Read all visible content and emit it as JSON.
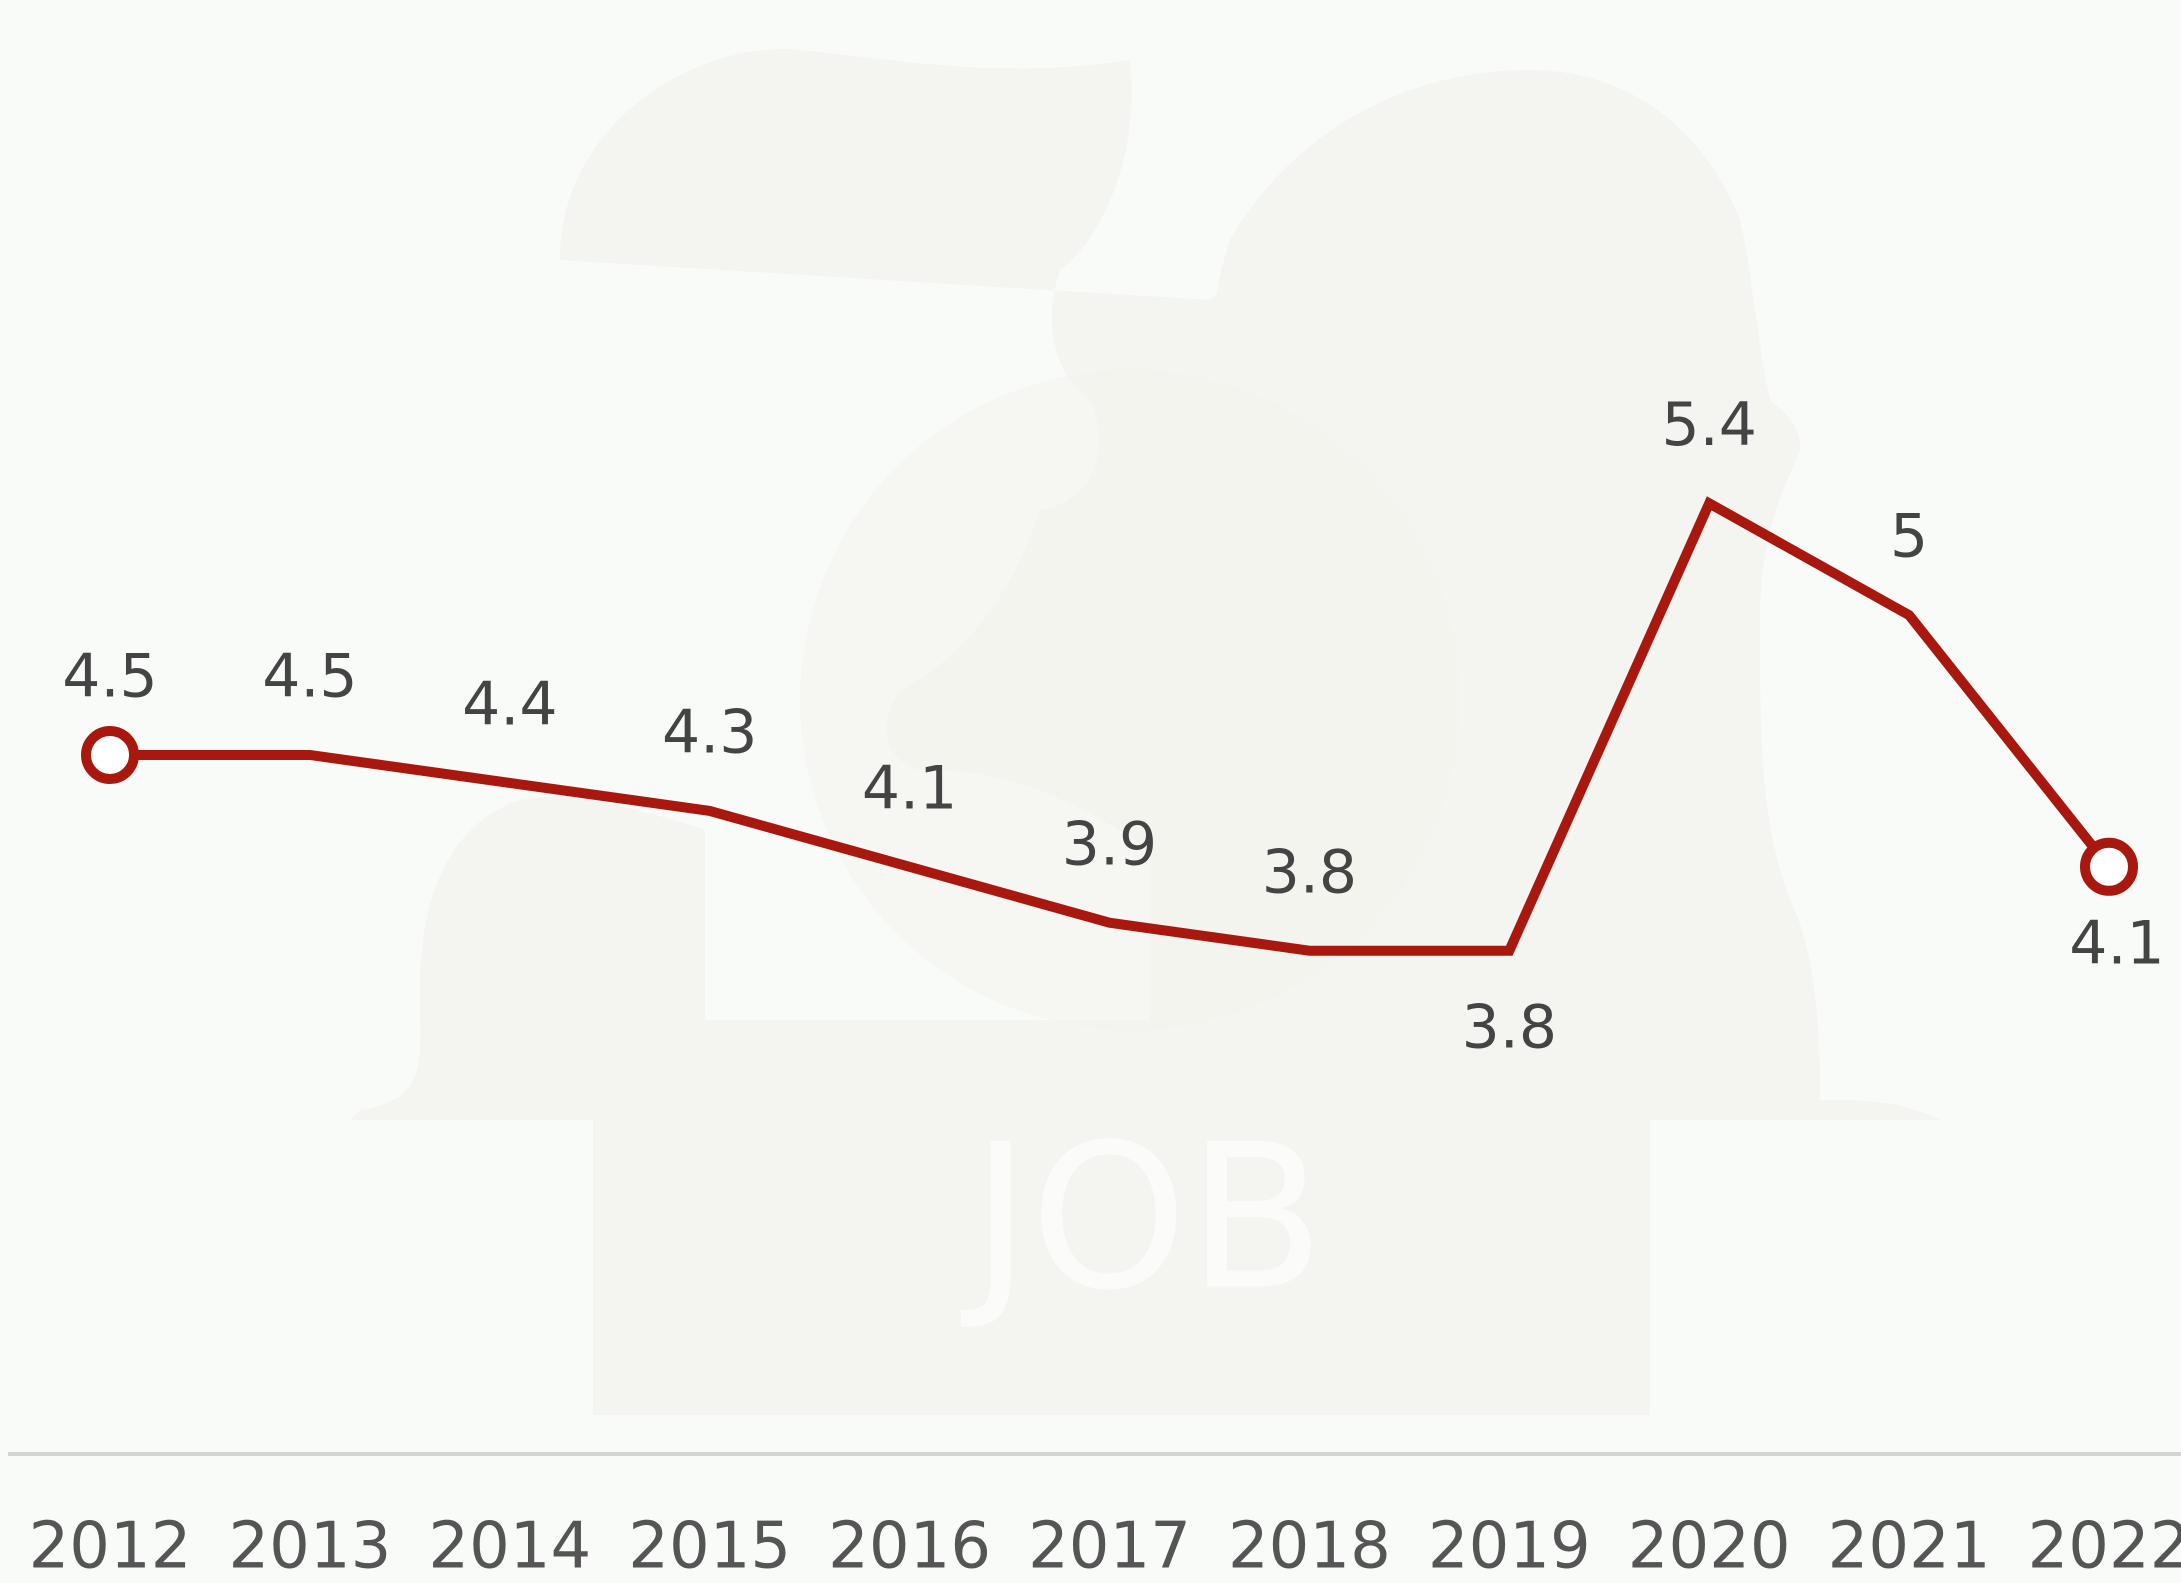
{
  "chart_data": {
    "type": "line",
    "categories": [
      "2012",
      "2013",
      "2014",
      "2015",
      "2016",
      "2017",
      "2018",
      "2019",
      "2020",
      "2021",
      "2022"
    ],
    "values": [
      4.5,
      4.5,
      4.4,
      4.3,
      4.1,
      3.9,
      3.8,
      3.8,
      5.4,
      5.0,
      4.1
    ],
    "color": "#a8180e",
    "ylim": [
      2,
      7.2
    ],
    "watermark_text": "JOB"
  }
}
